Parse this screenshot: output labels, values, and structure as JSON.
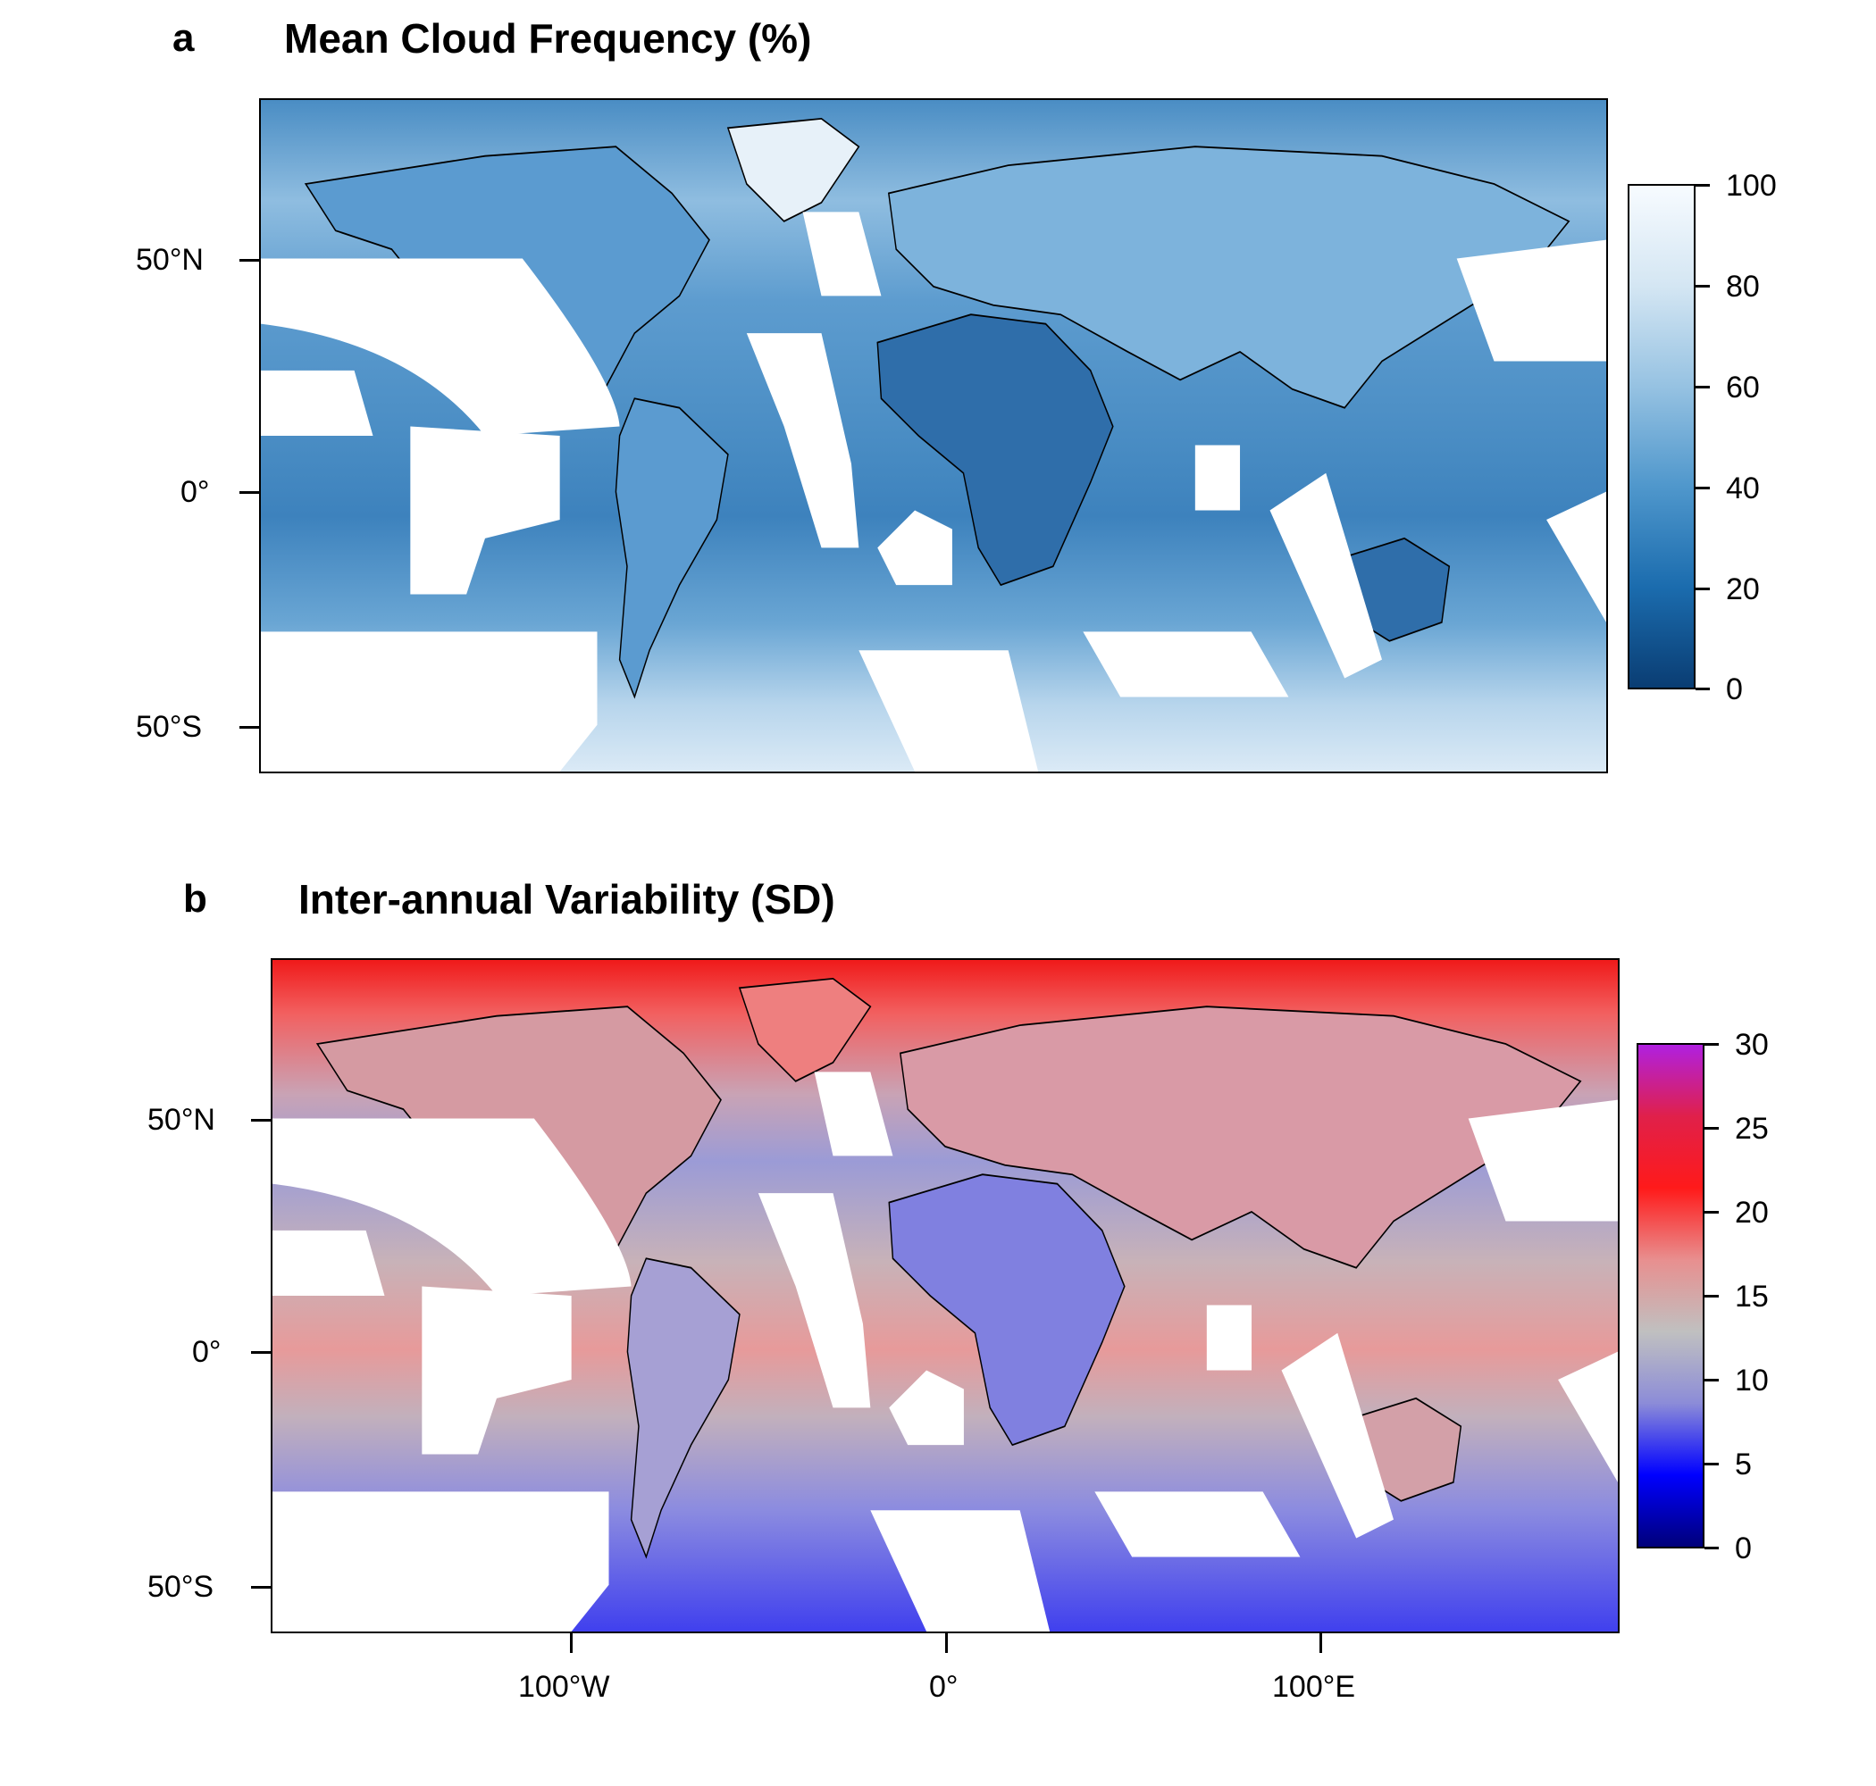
{
  "panels": [
    {
      "letter": "a",
      "title": "Mean Cloud Frequency (%)",
      "y_ticks": [
        "50°N",
        "0°",
        "50°S"
      ],
      "colorbar": {
        "ticks": [
          "100",
          "80",
          "60",
          "40",
          "20",
          "0"
        ],
        "gradient": [
          "#0a3d73",
          "#1b6cae",
          "#4f97cc",
          "#96c2e2",
          "#d4e6f3",
          "#f7fbff"
        ]
      }
    },
    {
      "letter": "b",
      "title": "Inter-annual Variability (SD)",
      "y_ticks": [
        "50°N",
        "0°",
        "50°S"
      ],
      "x_ticks": [
        "100°W",
        "0°",
        "100°E"
      ],
      "colorbar": {
        "ticks": [
          "30",
          "25",
          "20",
          "15",
          "10",
          "5",
          "0"
        ],
        "gradient": [
          "#00007a",
          "#0000ff",
          "#8c8cd8",
          "#c0c0c0",
          "#e88f8f",
          "#ff1a1a",
          "#e0204a",
          "#b020e0"
        ]
      }
    }
  ],
  "chart_data": [
    {
      "type": "heatmap",
      "title": "Mean Cloud Frequency (%)",
      "x_extent": [
        -180,
        180
      ],
      "y_extent": [
        -60,
        84
      ],
      "y_ticks": [
        50,
        0,
        -50
      ],
      "colorbar_range": [
        0,
        100
      ],
      "colorbar_ticks": [
        0,
        20,
        40,
        60,
        80,
        100
      ]
    },
    {
      "type": "heatmap",
      "title": "Inter-annual Variability (SD)",
      "x_extent": [
        -180,
        180
      ],
      "y_extent": [
        -60,
        84
      ],
      "y_ticks": [
        50,
        0,
        -50
      ],
      "x_ticks": [
        -100,
        0,
        100
      ],
      "colorbar_range": [
        0,
        30
      ],
      "colorbar_ticks": [
        0,
        5,
        10,
        15,
        20,
        25,
        30
      ]
    }
  ]
}
